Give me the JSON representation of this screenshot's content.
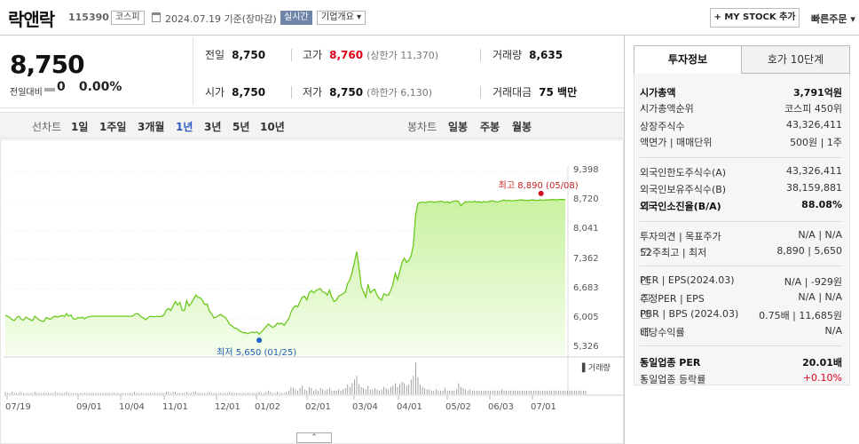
{
  "header": {
    "company_name": "락앤락",
    "code": "115390",
    "market": "코스피",
    "date": "2024.07.19 기준(장마감)",
    "realtime": "실시간",
    "company_info": "기업개요",
    "my_stock": "+ MY STOCK 추가",
    "quick_order": "빠른주문"
  },
  "summary": {
    "price": "8,750",
    "change_label": "전일대비",
    "change": "0",
    "change_rate": "0.00%",
    "stats": {
      "prev_close": {
        "label": "전일",
        "value": "8,750"
      },
      "high": {
        "label": "고가",
        "value": "8,760",
        "sub": "(상한가 11,370)"
      },
      "volume": {
        "label": "거래량",
        "value": "8,635"
      },
      "open": {
        "label": "시가",
        "value": "8,750"
      },
      "low": {
        "label": "저가",
        "value": "8,750",
        "sub": "(하한가 6,130)"
      },
      "amount": {
        "label": "거래대금",
        "value": "75 백만"
      }
    }
  },
  "period_tabs": {
    "line_label": "선차트",
    "line_tabs": [
      "1일",
      "1주일",
      "3개월",
      "1년",
      "3년",
      "5년",
      "10년"
    ],
    "active": "1년",
    "candle_label": "봉차트",
    "candle_tabs": [
      "일봉",
      "주봉",
      "월봉"
    ]
  },
  "chart_data": {
    "type": "area",
    "y_ticks": [
      "9,398",
      "8,720",
      "8,041",
      "7,362",
      "6,683",
      "6,005",
      "5,326"
    ],
    "ylim": [
      5326,
      9398
    ],
    "x_ticks": [
      "07/19",
      "09/01",
      "10/04",
      "11/01",
      "12/01",
      "01/02",
      "02/01",
      "03/04",
      "04/01",
      "05/02",
      "06/03",
      "07/01"
    ],
    "high_annotation": "최고 8,890 (05/08)",
    "low_annotation": "최저 5,650 (01/25)",
    "high_value": 8890,
    "low_value": 5650,
    "volume_label": "거래량",
    "price_series": [
      6080,
      6060,
      6030,
      5980,
      5960,
      6030,
      6060,
      5990,
      5970,
      6040,
      6010,
      5980,
      5960,
      6060,
      6020,
      5970,
      5950,
      5940,
      6030,
      6010,
      5990,
      6040,
      6060,
      6040,
      6060,
      6080,
      6050,
      6120,
      6060,
      6090,
      6000,
      5990,
      6030,
      6020,
      6040,
      6000,
      6040,
      6050,
      6060,
      6060,
      6060,
      6060,
      6060,
      6060,
      6060,
      6060,
      6060,
      6060,
      6060,
      6060,
      6060,
      6060,
      6060,
      6060,
      6060,
      6060,
      6060,
      6100,
      6120,
      6100,
      6040,
      6020,
      5980,
      6030,
      6060,
      6050,
      6050,
      6060,
      6050,
      6060,
      6090,
      6200,
      6240,
      6190,
      6300,
      6400,
      6320,
      6380,
      6200,
      6190,
      6420,
      6300,
      6360,
      6450,
      6550,
      6500,
      6480,
      6420,
      6330,
      6340,
      6180,
      6120,
      6020,
      6040,
      6080,
      6100,
      6060,
      6040,
      5960,
      5870,
      5840,
      5790,
      5780,
      5740,
      5700,
      5680,
      5680,
      5660,
      5680,
      5700,
      5680,
      5700,
      5650,
      5700,
      5760,
      5820,
      5880,
      5840,
      5800,
      5840,
      5900,
      5880,
      5900,
      5850,
      5930,
      6000,
      6150,
      6250,
      6300,
      6280,
      6400,
      6500,
      6520,
      6440,
      6600,
      6650,
      6600,
      6650,
      6680,
      6700,
      6620,
      6610,
      6550,
      6660,
      6500,
      6400,
      6430,
      6520,
      6550,
      6580,
      6620,
      6820,
      6900,
      7080,
      7300,
      7550,
      7200,
      6750,
      6620,
      6500,
      6800,
      6600,
      6650,
      6680,
      6540,
      6470,
      6430,
      6580,
      6550,
      6550,
      6650,
      6800,
      7050,
      6900,
      7100,
      7300,
      7400,
      7300,
      7350,
      7450,
      7700,
      8400,
      8660,
      8680,
      8690,
      8680,
      8690,
      8700,
      8700,
      8690,
      8690,
      8700,
      8710,
      8700,
      8680,
      8700,
      8670,
      8700,
      8710,
      8720,
      8700,
      8610,
      8660,
      8700,
      8690,
      8700,
      8690,
      8710,
      8690,
      8700,
      8680,
      8700,
      8690,
      8700,
      8710,
      8720,
      8700,
      8690,
      8710,
      8720,
      8740,
      8720,
      8730,
      8720,
      8720,
      8730,
      8730,
      8740,
      8740,
      8730,
      8730,
      8730,
      8740,
      8740,
      8730,
      8730,
      8740,
      8730,
      8740,
      8740,
      8740,
      8750,
      8750,
      8740,
      8750,
      8750,
      8750,
      8750
    ],
    "volume_series": [
      2,
      1,
      1,
      2,
      1,
      1,
      1,
      2,
      1,
      1,
      1,
      1,
      1,
      2,
      1,
      1,
      1,
      1,
      1,
      1,
      1,
      1,
      2,
      1,
      1,
      1,
      1,
      2,
      1,
      1,
      1,
      1,
      1,
      1,
      1,
      1,
      1,
      1,
      1,
      1,
      1,
      1,
      1,
      1,
      1,
      1,
      1,
      1,
      1,
      1,
      1,
      1,
      1,
      1,
      1,
      1,
      1,
      2,
      1,
      1,
      1,
      1,
      1,
      1,
      1,
      1,
      1,
      1,
      1,
      1,
      1,
      2,
      2,
      1,
      2,
      2,
      1,
      1,
      1,
      1,
      2,
      1,
      1,
      2,
      2,
      1,
      1,
      1,
      1,
      1,
      2,
      1,
      1,
      1,
      1,
      1,
      1,
      1,
      1,
      2,
      1,
      1,
      1,
      1,
      1,
      1,
      1,
      1,
      1,
      1,
      1,
      1,
      2,
      1,
      1,
      2,
      3,
      2,
      1,
      1,
      2,
      1,
      1,
      1,
      2,
      3,
      6,
      5,
      4,
      3,
      5,
      7,
      4,
      3,
      6,
      5,
      3,
      4,
      3,
      5,
      4,
      3,
      4,
      5,
      3,
      3,
      3,
      4,
      3,
      4,
      5,
      8,
      6,
      9,
      12,
      15,
      8,
      6,
      5,
      4,
      7,
      4,
      4,
      5,
      4,
      3,
      4,
      6,
      5,
      4,
      6,
      7,
      9,
      6,
      8,
      10,
      9,
      7,
      8,
      12,
      15,
      26,
      14,
      8,
      6,
      5,
      4,
      4,
      3,
      3,
      4,
      3,
      3,
      3,
      5,
      3,
      3,
      3,
      3,
      4,
      9,
      6,
      5,
      4,
      3,
      4,
      3,
      3,
      3,
      3,
      3,
      3,
      3,
      3,
      3,
      3,
      3,
      3,
      3,
      4,
      3,
      3,
      3,
      3,
      3,
      3,
      3,
      3,
      3,
      3,
      3,
      3,
      3,
      3,
      3,
      3,
      3,
      3,
      3,
      3,
      3,
      3,
      3,
      3,
      3,
      3,
      3,
      3,
      3,
      3,
      3,
      3,
      3,
      3,
      3,
      3,
      3
    ]
  },
  "right_panel": {
    "tabs": [
      "투자정보",
      "호가 10단계"
    ],
    "rows": [
      {
        "label": "시가총액",
        "value": "3,791억원",
        "bold": true
      },
      {
        "label": "시가총액순위",
        "value": "코스피 450위",
        "tri": true
      },
      {
        "label": "상장주식수",
        "value": "43,326,411"
      },
      {
        "label": "액면가 | 매매단위",
        "value": "500원 | 1주"
      },
      {
        "label": "외국인한도주식수(A)",
        "value": "43,326,411"
      },
      {
        "label": "외국인보유주식수(B)",
        "value": "38,159,881"
      },
      {
        "label": "외국인소진율(B/A)",
        "value": "88.08%",
        "bold": true,
        "q": true
      },
      {
        "label": "투자의견 | 목표주가",
        "value": "N/A | N/A"
      },
      {
        "label": "52주최고 | 최저",
        "value": "8,890 | 5,650",
        "q": true
      },
      {
        "label": "PER | EPS(2024.03)",
        "value": "N/A | -929원",
        "q": true
      },
      {
        "label": "추정PER | EPS",
        "value": "N/A | N/A",
        "q": true
      },
      {
        "label": "PBR | BPS (2024.03)",
        "value": "0.75배 | 11,685원",
        "q": true
      },
      {
        "label": "배당수익률",
        "value": "N/A",
        "q": true
      },
      {
        "label": "동일업종 PER",
        "value": "20.01배",
        "bold": true,
        "tri": true
      },
      {
        "label": "동일업종 등락률",
        "value": "+0.10%",
        "red": true,
        "tri": true
      }
    ]
  },
  "colors": {
    "line": "#6cc91f",
    "fill_top": "#c9f2a0",
    "fill_bottom": "#f4fdec",
    "up": "#e0001a",
    "active_tab": "#2c5bbf"
  }
}
